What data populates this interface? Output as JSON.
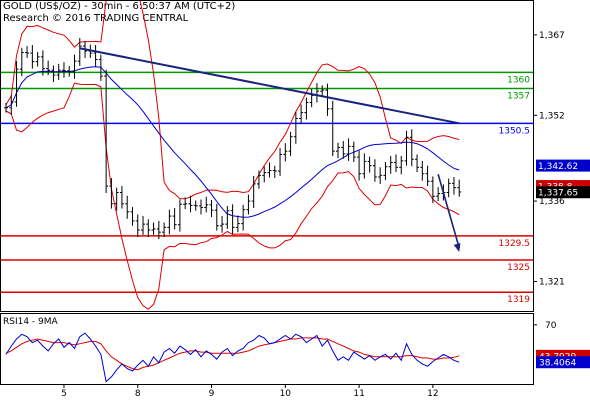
{
  "header": {
    "line1": "GOLD (US$/OZ) - 30min - 6:50:37 AM (UTC+2)",
    "line2": "Research © 2016 TRADING CENTRAL"
  },
  "chart_data": [
    {
      "type": "line",
      "title": "GOLD (US$/OZ) - 30min",
      "x_tick_labels": [
        "5",
        "8",
        "9",
        "10",
        "11",
        "12"
      ],
      "x_tick_index": [
        11,
        25,
        39,
        53,
        67,
        81
      ],
      "y_ticks": [
        1321,
        1336,
        1352,
        1367
      ],
      "y_tick_labels": [
        "1,321",
        "1,336",
        "1,352",
        "1,367"
      ],
      "ylim": [
        1315.5,
        1373.5
      ],
      "grid": false,
      "close": [
        1353.4,
        1354.5,
        1360.6,
        1363.7,
        1363.6,
        1362.0,
        1362.9,
        1360.7,
        1360.4,
        1359.5,
        1360.4,
        1360.3,
        1360.1,
        1362.1,
        1364.9,
        1364.0,
        1363.6,
        1362.4,
        1359.3,
        1338.8,
        1335.5,
        1337.6,
        1335.5,
        1334.0,
        1332.3,
        1330.6,
        1331.7,
        1330.6,
        1330.8,
        1330.2,
        1331.1,
        1333.2,
        1331.6,
        1335.4,
        1335.5,
        1335.2,
        1335.1,
        1334.8,
        1335.3,
        1334.3,
        1331.4,
        1331.7,
        1334.2,
        1331.1,
        1331.8,
        1334.4,
        1336.0,
        1339.2,
        1340.8,
        1341.3,
        1341.7,
        1341.6,
        1344.7,
        1345.3,
        1348.0,
        1351.4,
        1352.5,
        1354.4,
        1355.7,
        1356.5,
        1356.7,
        1353.2,
        1345.3,
        1346.0,
        1344.8,
        1346.2,
        1344.2,
        1341.1,
        1343.4,
        1342.6,
        1340.5,
        1340.8,
        1342.4,
        1343.2,
        1342.3,
        1343.5,
        1347.9,
        1343.8,
        1342.3,
        1341.1,
        1339.7,
        1336.9,
        1337.4,
        1337.6,
        1339.3,
        1338.5,
        1337.7
      ],
      "levels": [
        {
          "value": 1360,
          "label": "1360",
          "color": "#009900"
        },
        {
          "value": 1357,
          "label": "1357",
          "color": "#009900"
        },
        {
          "value": 1350.5,
          "label": "1350.5",
          "color": "#0000ff"
        },
        {
          "value": 1329.5,
          "label": "1329.5",
          "color": "#dd0000"
        },
        {
          "value": 1325,
          "label": "1325",
          "color": "#dd0000"
        },
        {
          "value": 1319,
          "label": "1319",
          "color": "#dd0000"
        }
      ],
      "price_tags": [
        {
          "value": 1342.62,
          "label": "1,342.62",
          "color": "#0000cc"
        },
        {
          "value": 1338.8,
          "label": "1,338.8",
          "color": "#cc0000"
        },
        {
          "value": 1337.65,
          "label": "1,337.65",
          "color": "#000000"
        }
      ],
      "trendline": {
        "from": {
          "index": 14,
          "value": 1364.5
        },
        "to": {
          "index": 86,
          "value": 1350.5
        },
        "color": "#1a237e"
      },
      "forecast_arrow": {
        "from": {
          "index": 82,
          "value": 1341
        },
        "to": {
          "index": 86,
          "value": 1326.5
        },
        "color": "#1a237e"
      },
      "series_colors": {
        "price": "#000000",
        "bollinger": "#dd0000",
        "moving_average": "#0000cc"
      }
    },
    {
      "type": "line",
      "title": "RSI14 - 9MA",
      "y_ticks": [
        70
      ],
      "y_tick_labels": [
        "70"
      ],
      "ylim": [
        20,
        80
      ],
      "grid": false,
      "rsi": [
        45,
        52,
        58,
        62,
        60,
        55,
        57,
        52,
        48,
        54,
        58,
        51,
        55,
        50,
        60,
        63,
        58,
        52,
        45,
        22,
        26,
        32,
        37,
        33,
        31,
        36,
        40,
        35,
        43,
        38,
        47,
        50,
        46,
        52,
        49,
        45,
        49,
        43,
        48,
        45,
        41,
        47,
        50,
        44,
        48,
        50,
        55,
        57,
        61,
        59,
        54,
        55,
        58,
        61,
        58,
        62,
        60,
        55,
        58,
        61,
        52,
        57,
        48,
        40,
        43,
        40,
        47,
        44,
        41,
        44,
        40,
        43,
        45,
        41,
        46,
        40,
        54,
        45,
        40,
        37,
        35,
        39,
        42,
        45,
        43,
        40,
        38.4
      ],
      "rsi_ma": [
        46,
        48,
        51,
        54,
        56,
        57,
        58,
        57,
        56,
        55,
        55,
        55,
        54,
        53,
        54,
        55,
        56,
        56,
        54,
        48,
        43,
        40,
        37,
        35,
        33,
        32,
        34,
        35,
        36,
        38,
        40,
        42,
        44,
        46,
        47,
        48,
        48,
        47,
        47,
        46,
        46,
        46,
        46,
        46,
        46,
        47,
        48,
        50,
        52,
        53,
        54,
        55,
        56,
        57,
        58,
        58,
        59,
        59,
        59,
        59,
        58,
        58,
        56,
        54,
        52,
        50,
        48,
        47,
        45,
        44,
        43,
        43,
        43,
        43,
        43,
        43,
        44,
        44,
        43,
        42,
        42,
        41,
        41,
        42,
        42,
        42.6,
        43.8
      ],
      "value_tags": [
        {
          "value": 43.7929,
          "label": "43.7929",
          "color": "#cc0000"
        },
        {
          "value": 38.4064,
          "label": "38.4064",
          "color": "#0000cc"
        }
      ],
      "series_colors": {
        "rsi": "#0000cc",
        "rsi_ma": "#dd0000"
      }
    }
  ]
}
